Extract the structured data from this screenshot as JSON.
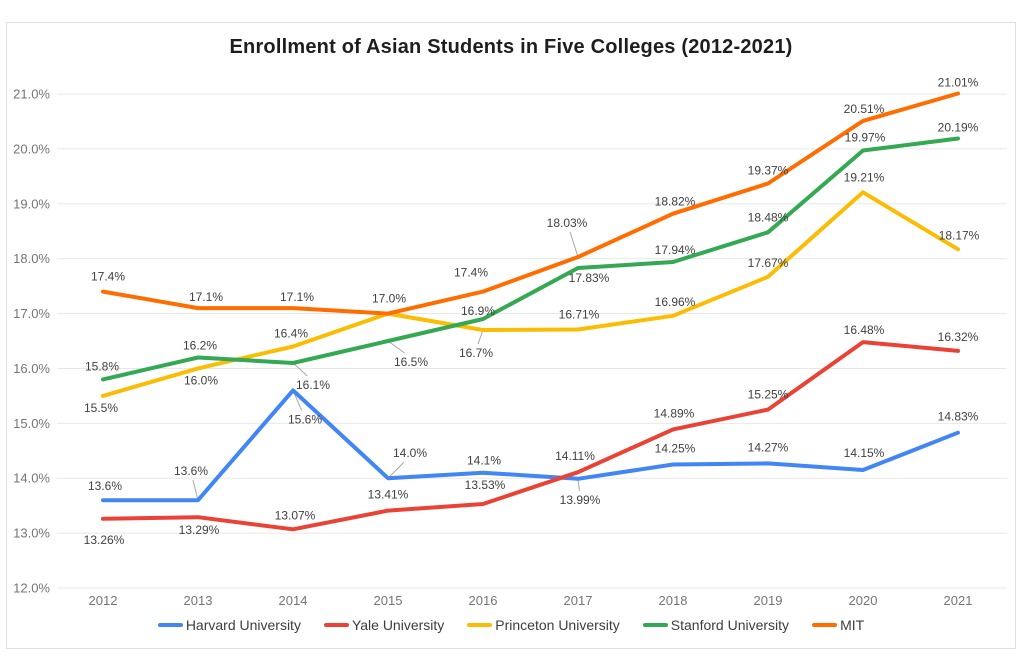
{
  "chart_data": {
    "type": "line",
    "title": "Enrollment of Asian Students in Five Colleges (2012-2021)",
    "categories": [
      "2012",
      "2013",
      "2014",
      "2015",
      "2016",
      "2017",
      "2018",
      "2019",
      "2020",
      "2021"
    ],
    "series": [
      {
        "name": "Harvard University",
        "color": "#4285f4",
        "values": [
          13.6,
          13.6,
          15.6,
          14.0,
          14.1,
          13.99,
          14.25,
          14.27,
          14.15,
          14.83
        ],
        "labels": [
          "13.6%",
          "13.6%",
          "15.6%",
          "14.0%",
          "14.1%",
          "13.99%",
          "14.25%",
          "14.27%",
          "14.15%",
          "14.83%"
        ]
      },
      {
        "name": "Yale University",
        "color": "#ea4335",
        "values": [
          13.26,
          13.29,
          13.07,
          13.41,
          13.53,
          14.11,
          14.89,
          15.25,
          16.48,
          16.32
        ],
        "labels": [
          "13.26%",
          "13.29%",
          "13.07%",
          "13.41%",
          "13.53%",
          "14.11%",
          "14.89%",
          "15.25%",
          "16.48%",
          "16.32%"
        ]
      },
      {
        "name": "Princeton University",
        "color": "#fbbc04",
        "values": [
          15.5,
          16.0,
          16.4,
          17.0,
          16.7,
          16.71,
          16.96,
          17.67,
          19.21,
          18.17
        ],
        "labels": [
          "15.5%",
          "16.0%",
          "16.4%",
          null,
          "16.7%",
          "16.71%",
          "16.96%",
          "17.67%",
          "19.21%",
          "18.17%"
        ]
      },
      {
        "name": "Stanford University",
        "color": "#34a853",
        "values": [
          15.8,
          16.2,
          16.1,
          16.5,
          16.9,
          17.83,
          17.94,
          18.48,
          19.97,
          20.19
        ],
        "labels": [
          "15.8%",
          "16.2%",
          "16.1%",
          "16.5%",
          "16.9%",
          "17.83%",
          "17.94%",
          "18.48%",
          "19.97%",
          "20.19%"
        ]
      },
      {
        "name": "MIT",
        "color": "#ff6d01",
        "values": [
          17.4,
          17.1,
          17.1,
          17.0,
          17.4,
          18.03,
          18.82,
          19.37,
          20.51,
          21.01
        ],
        "labels": [
          "17.4%",
          "17.1%",
          "17.1%",
          "17.0%",
          "17.4%",
          "18.03%",
          "18.82%",
          "19.37%",
          "20.51%",
          "21.01%"
        ]
      }
    ],
    "y_axis": {
      "min": 12,
      "max": 21,
      "step": 1,
      "tick_labels": [
        "12.0%",
        "13.0%",
        "14.0%",
        "15.0%",
        "16.0%",
        "17.0%",
        "18.0%",
        "19.0%",
        "20.0%",
        "21.0%"
      ]
    },
    "x_axis": {
      "tick_labels": [
        "2012",
        "2013",
        "2014",
        "2015",
        "2016",
        "2017",
        "2018",
        "2019",
        "2020",
        "2021"
      ]
    },
    "grid": true,
    "legend_position": "bottom",
    "colors": {
      "title_text": "#1e1e1e",
      "axis_text": "#757575",
      "data_label_text": "#404040",
      "gridline": "#e8e8e8",
      "leader_line": "#a8a8a8",
      "card_border": "#e0e0e0",
      "background": "#ffffff"
    }
  }
}
